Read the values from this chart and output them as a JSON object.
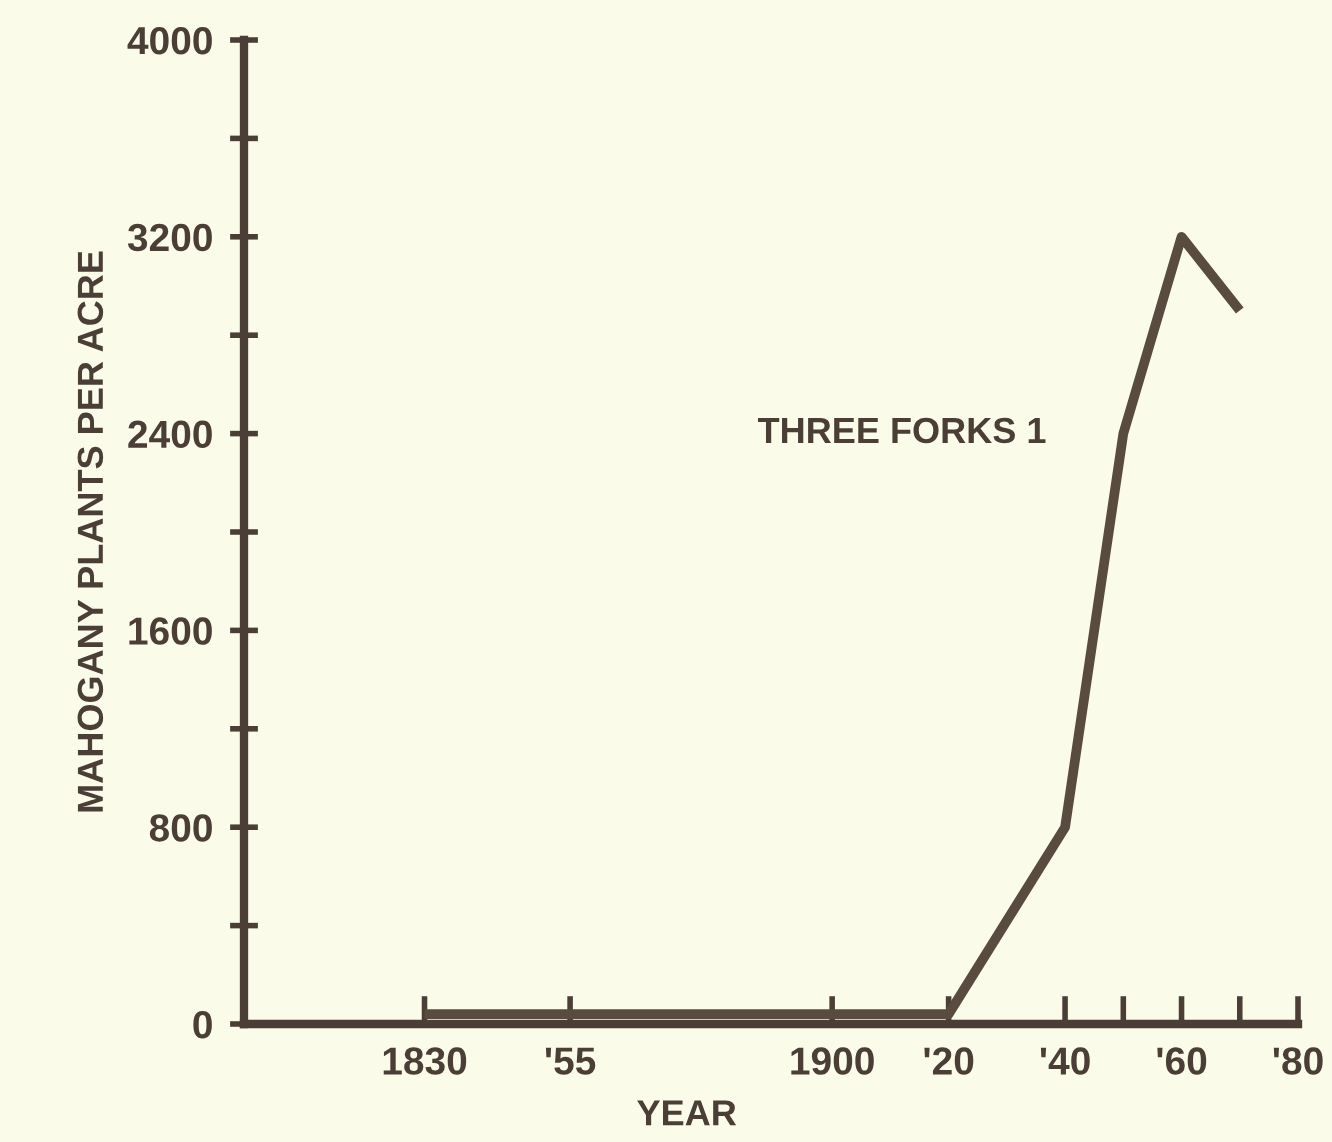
{
  "chart_data": {
    "type": "line",
    "xlabel": "YEAR",
    "ylabel": "MAHOGANY PLANTS PER ACRE",
    "series": [
      {
        "name": "THREE FORKS 1",
        "color": "#5a4b41",
        "x": [
          1830,
          1855,
          1900,
          1920,
          1940,
          1950,
          1960,
          1970
        ],
        "values": [
          40,
          40,
          40,
          40,
          800,
          2400,
          3200,
          2900
        ]
      }
    ],
    "xlim": [
      1799,
      1980
    ],
    "ylim": [
      0,
      4000
    ],
    "xticks": [
      {
        "value": 1830,
        "label": "1830"
      },
      {
        "value": 1855,
        "label": "'55"
      },
      {
        "value": 1900,
        "label": "1900"
      },
      {
        "value": 1920,
        "label": "'20"
      },
      {
        "value": 1940,
        "label": "'40"
      },
      {
        "value": 1950,
        "label": null
      },
      {
        "value": 1960,
        "label": "'60"
      },
      {
        "value": 1970,
        "label": null
      },
      {
        "value": 1980,
        "label": "'80"
      }
    ],
    "yticks": [
      0,
      {
        "value": 400,
        "label": null
      },
      800,
      {
        "value": 1200,
        "label": null
      },
      1600,
      {
        "value": 2000,
        "label": null
      },
      2400,
      {
        "value": 2800,
        "label": null
      },
      3200,
      {
        "value": 3600,
        "label": null
      },
      4000
    ],
    "grid": false,
    "legend": false,
    "marker": "none",
    "line_style": "solid"
  }
}
